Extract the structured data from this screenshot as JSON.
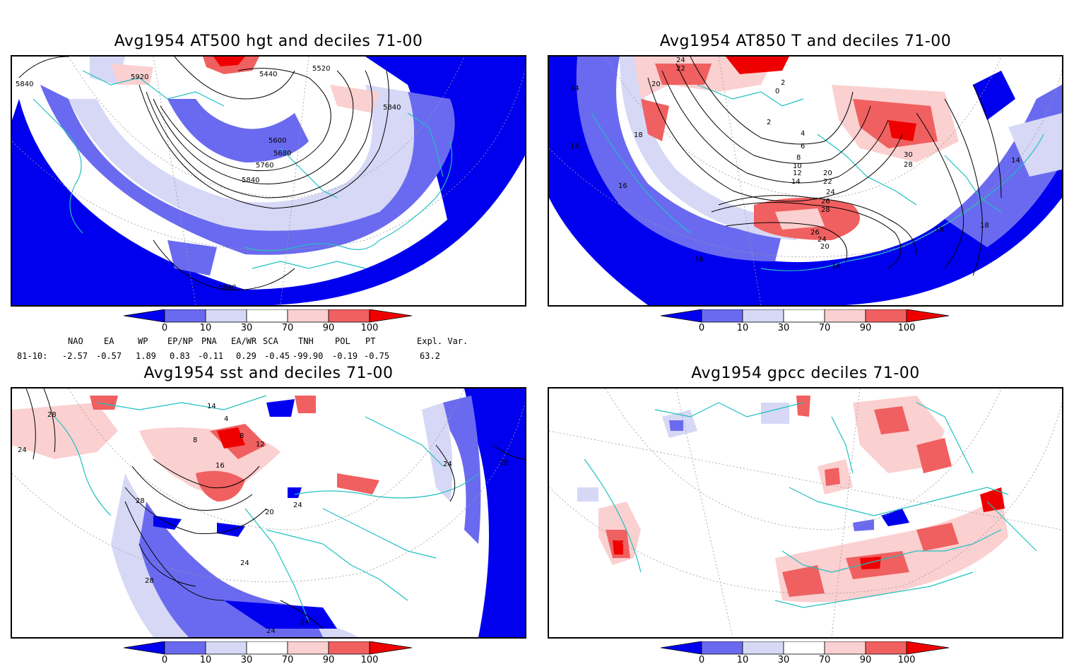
{
  "panels": [
    {
      "title": "Avg1954 AT500 hgt and deciles 71-00",
      "contour_labels": [
        "5920",
        "5440",
        "5520",
        "5840",
        "5840",
        "5600",
        "5680",
        "5760",
        "5840",
        "5840"
      ]
    },
    {
      "title": "Avg1954 AT850 T and deciles 71-00",
      "contour_labels": [
        "14",
        "16",
        "16",
        "20",
        "22",
        "24",
        "2",
        "0",
        "2",
        "4",
        "6",
        "8",
        "10",
        "12",
        "14",
        "18",
        "20",
        "22",
        "24",
        "26",
        "28",
        "30",
        "28",
        "26",
        "24",
        "20",
        "18",
        "16",
        "14",
        "18",
        "16"
      ]
    },
    {
      "title": "Avg1954 sst and deciles 71-00",
      "contour_labels": [
        "28",
        "24",
        "14",
        "4",
        "8",
        "8",
        "12",
        "16",
        "20",
        "24",
        "28",
        "24",
        "28",
        "24",
        "24",
        "28",
        "24"
      ]
    },
    {
      "title": "Avg1954 gpcc deciles 71-00",
      "contour_labels": []
    }
  ],
  "colorbar": {
    "ticks": [
      "0",
      "10",
      "30",
      "70",
      "90",
      "100"
    ],
    "colors": [
      "#0000ee",
      "#6a6af0",
      "#d6d8f6",
      "#ffffff",
      "#fbd0d0",
      "#f06060",
      "#ee0000"
    ]
  },
  "indices": {
    "headers": [
      "NAO",
      "EA",
      "WP",
      "EP/NP",
      "PNA",
      "EA/WR",
      "SCA",
      "TNH",
      "POL",
      "PT",
      "Expl. Var."
    ],
    "row_label": "81-10:",
    "values": [
      "-2.57",
      "-0.57",
      "1.89",
      "0.83",
      "-0.11",
      "0.29",
      "-0.45",
      "-99.90",
      "-0.19",
      "-0.75",
      "63.2"
    ]
  }
}
